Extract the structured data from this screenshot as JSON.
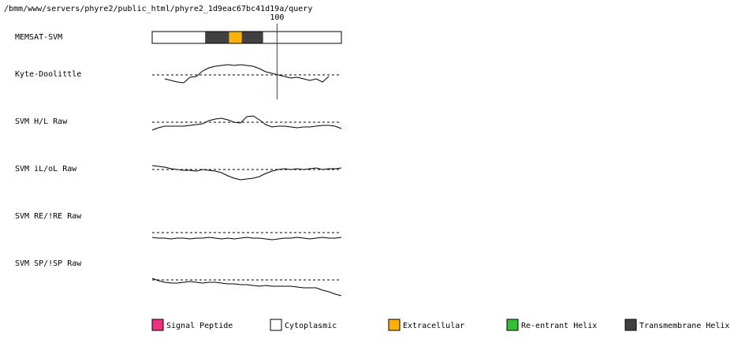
{
  "title": "/bmm/www/servers/phyre2/public_html/phyre2_1d9eac67bc41d19a/query",
  "xlim": [
    1,
    151
  ],
  "marker": 100,
  "x": [
    1,
    6,
    11,
    16,
    21,
    26,
    31,
    36,
    41,
    46,
    51,
    56,
    61,
    66,
    71,
    76,
    81,
    86,
    91,
    96,
    101,
    106,
    111,
    116,
    121,
    126,
    131,
    136,
    141,
    146,
    151
  ],
  "topology": {
    "label": "MEMSAT-SVM",
    "segments": [
      {
        "start": 1,
        "end": 43,
        "color": "#ffffff"
      },
      {
        "start": 43,
        "end": 62,
        "color": "#404040"
      },
      {
        "start": 62,
        "end": 72,
        "color": "#ffb000"
      },
      {
        "start": 72,
        "end": 89,
        "color": "#404040"
      },
      {
        "start": 89,
        "end": 151,
        "color": "#ffffff"
      }
    ]
  },
  "tracks": [
    {
      "label": "Kyte-Doolittle",
      "ylim": [
        -25,
        25
      ],
      "threshold": 0,
      "values": [
        null,
        null,
        -5,
        -7,
        -9,
        -10,
        -3,
        -2,
        5,
        9,
        11,
        12,
        13,
        12,
        13,
        12,
        11,
        8,
        4,
        2,
        0,
        -2,
        -4,
        -3,
        -5,
        -7,
        -5,
        -9,
        -2,
        null,
        null
      ]
    },
    {
      "label": "SVM H/L Raw",
      "ylim": [
        -25,
        25
      ],
      "threshold": 0,
      "values": [
        -10,
        -7,
        -5,
        -5,
        -5,
        -5,
        -4,
        -3,
        -2,
        2,
        4,
        5,
        3,
        0,
        -1,
        7,
        8,
        3,
        -3,
        -6,
        -5,
        -5,
        -6,
        -7,
        -6,
        -6,
        -5,
        -4,
        -4,
        -5,
        -8
      ]
    },
    {
      "label": "SVM iL/oL Raw",
      "ylim": [
        -25,
        25
      ],
      "threshold": 0,
      "values": [
        5,
        4,
        3,
        1,
        0,
        -1,
        -1,
        -2,
        0,
        -1,
        -2,
        -4,
        -8,
        -11,
        -13,
        -12,
        -11,
        -9,
        -5,
        -2,
        0,
        1,
        0,
        1,
        0,
        1,
        2,
        0,
        1,
        1,
        2
      ]
    },
    {
      "label": "SVM RE/!RE Raw",
      "ylim": [
        -25,
        25
      ],
      "threshold": 0,
      "values": [
        -6,
        -7,
        -7,
        -8,
        -7,
        -7,
        -8,
        -7,
        -7,
        -6,
        -7,
        -8,
        -7,
        -8,
        -7,
        -6,
        -7,
        -7,
        -8,
        -9,
        -8,
        -7,
        -7,
        -6,
        -7,
        -8,
        -7,
        -6,
        -7,
        -7,
        -6
      ]
    },
    {
      "label": "SVM SP/!SP Raw",
      "ylim": [
        -25,
        25
      ],
      "threshold": 0,
      "values": [
        2,
        -1,
        -3,
        -4,
        -4,
        -3,
        -2,
        -3,
        -4,
        -3,
        -3,
        -4,
        -5,
        -5,
        -6,
        -6,
        -7,
        -8,
        -7,
        -8,
        -8,
        -8,
        -8,
        -9,
        -10,
        -10,
        -10,
        -13,
        -15,
        -18,
        -20
      ]
    }
  ],
  "legend": [
    {
      "label": "Signal Peptide",
      "color": "#f03080"
    },
    {
      "label": "Cytoplasmic",
      "color": "#ffffff"
    },
    {
      "label": "Extracellular",
      "color": "#ffb000"
    },
    {
      "label": "Re-entrant Helix",
      "color": "#30c030"
    },
    {
      "label": "Transmembrane Helix",
      "color": "#404040"
    }
  ]
}
